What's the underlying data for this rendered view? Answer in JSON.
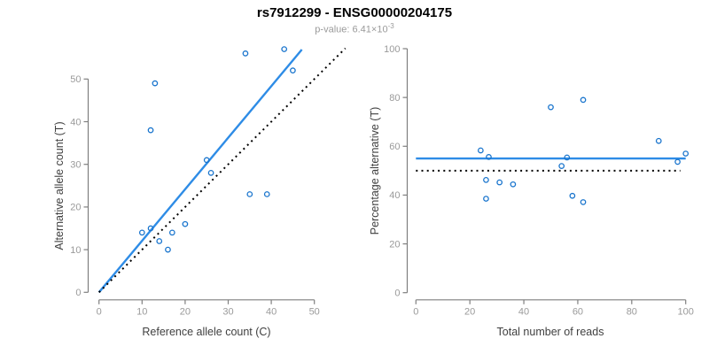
{
  "title": "rs7912299 - ENSG00000204175",
  "subtitle": {
    "text": "p-value: 6.41×10",
    "exponent": "-3"
  },
  "colors": {
    "fit_line_blue": "#2E8CE6",
    "point_blue": "#1874CD",
    "reference_line_black": "#000000",
    "axis_gray": "#7f7f7f",
    "tick_label_gray": "#9a9a9a",
    "axis_title_gray": "#404040",
    "subtitle_gray": "#9a9a9a",
    "title_black": "#000000"
  },
  "chart_data": [
    {
      "name": "allele-count-scatter",
      "type": "scatter",
      "xlabel": "Reference allele count (C)",
      "ylabel": "Alternative allele count (T)",
      "xlim": [
        0,
        50
      ],
      "ylim": [
        0,
        50
      ],
      "xticks": [
        0,
        10,
        20,
        30,
        40,
        50
      ],
      "yticks": [
        0,
        10,
        20,
        30,
        40,
        50
      ],
      "grid": false,
      "points": [
        [
          13,
          49
        ],
        [
          12,
          38
        ],
        [
          34,
          56
        ],
        [
          43,
          57
        ],
        [
          45,
          52
        ],
        [
          25,
          31
        ],
        [
          26,
          28
        ],
        [
          35,
          23
        ],
        [
          39,
          23
        ],
        [
          20,
          16
        ],
        [
          10,
          14
        ],
        [
          12,
          15
        ],
        [
          14,
          12
        ],
        [
          17,
          14
        ],
        [
          16,
          10
        ]
      ],
      "lines": [
        {
          "name": "regression-line",
          "role": "fit",
          "style": "solid",
          "x1": 0,
          "y1": 0,
          "x2": 47.1,
          "y2": 56.9
        },
        {
          "name": "identity-line",
          "role": "reference",
          "style": "dotted",
          "x1": 0,
          "y1": 0,
          "x2": 57.2,
          "y2": 57.2
        }
      ]
    },
    {
      "name": "percentage-alternative-scatter",
      "type": "scatter",
      "xlabel": "Total number of reads",
      "ylabel": "Percentage alternative (T)",
      "xlim": [
        0,
        100
      ],
      "ylim": [
        0,
        100
      ],
      "xticks": [
        0,
        20,
        40,
        60,
        80,
        100
      ],
      "yticks": [
        0,
        20,
        40,
        60,
        80,
        100
      ],
      "grid": false,
      "points": [
        [
          62,
          79.0
        ],
        [
          50,
          76.0
        ],
        [
          90,
          62.2
        ],
        [
          100,
          57.0
        ],
        [
          97,
          53.6
        ],
        [
          56,
          55.4
        ],
        [
          54,
          51.9
        ],
        [
          58,
          39.7
        ],
        [
          62,
          37.1
        ],
        [
          36,
          44.4
        ],
        [
          24,
          58.3
        ],
        [
          27,
          55.6
        ],
        [
          26,
          46.2
        ],
        [
          31,
          45.2
        ],
        [
          26,
          38.5
        ]
      ],
      "lines": [
        {
          "name": "mean-percentage-line",
          "role": "fit",
          "style": "solid",
          "x1": 0,
          "y1": 55,
          "x2": 100,
          "y2": 55
        },
        {
          "name": "fifty-percent-line",
          "role": "reference",
          "style": "dotted",
          "x1": 0,
          "y1": 50,
          "x2": 98,
          "y2": 50
        }
      ]
    }
  ]
}
